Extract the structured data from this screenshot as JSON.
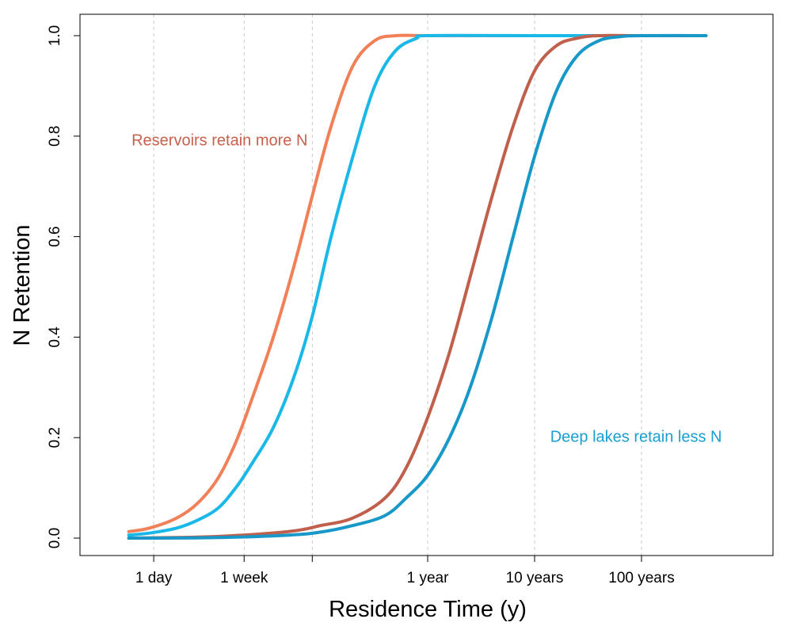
{
  "chart_data": {
    "type": "line",
    "xlabel": "Residence Time (y)",
    "ylabel": "N Retention",
    "x_scale": "log",
    "x_unit": "years",
    "xlim": [
      0.0013,
      600
    ],
    "ylim": [
      -0.03,
      1.03
    ],
    "grid": "vertical dashed at x ticks",
    "x_ticks": [
      {
        "value": 0.00274,
        "label": "1 day"
      },
      {
        "value": 0.0192,
        "label": "1 week"
      },
      {
        "value": 0.0833,
        "label": ""
      },
      {
        "value": 1,
        "label": "1 year"
      },
      {
        "value": 10,
        "label": "10 years"
      },
      {
        "value": 100,
        "label": "100 years"
      }
    ],
    "y_ticks": [
      {
        "value": 0.0,
        "label": "0.0"
      },
      {
        "value": 0.2,
        "label": "0.2"
      },
      {
        "value": 0.4,
        "label": "0.4"
      },
      {
        "value": 0.6,
        "label": "0.6"
      },
      {
        "value": 0.8,
        "label": "0.8"
      },
      {
        "value": 1.0,
        "label": "1.0"
      }
    ],
    "series": [
      {
        "color": "#f08058",
        "x": [
          0.0016,
          0.0025,
          0.0045,
          0.0071,
          0.011,
          0.016,
          0.023,
          0.036,
          0.056,
          0.083,
          0.125,
          0.2,
          0.32,
          0.5,
          1,
          10,
          100,
          400
        ],
        "y": [
          0.013,
          0.02,
          0.04,
          0.07,
          0.12,
          0.19,
          0.28,
          0.4,
          0.54,
          0.68,
          0.82,
          0.94,
          0.99,
          1.0,
          1.0,
          1.0,
          1.0,
          1.0
        ]
      },
      {
        "color": "#1ab8e8",
        "x": [
          0.0016,
          0.0025,
          0.0045,
          0.0071,
          0.011,
          0.016,
          0.023,
          0.036,
          0.056,
          0.083,
          0.125,
          0.2,
          0.32,
          0.5,
          0.79,
          1,
          10,
          100,
          400
        ],
        "y": [
          0.006,
          0.01,
          0.02,
          0.036,
          0.06,
          0.1,
          0.15,
          0.22,
          0.32,
          0.44,
          0.6,
          0.76,
          0.9,
          0.97,
          0.995,
          1.0,
          1.0,
          1.0,
          1.0
        ]
      },
      {
        "color": "#c0604c",
        "x": [
          0.0016,
          0.01,
          0.05,
          0.1,
          0.2,
          0.4,
          0.63,
          1,
          1.6,
          2.5,
          4,
          6.3,
          10,
          16,
          25,
          40,
          100,
          400
        ],
        "y": [
          0.0,
          0.003,
          0.013,
          0.025,
          0.04,
          0.08,
          0.14,
          0.24,
          0.37,
          0.52,
          0.68,
          0.82,
          0.93,
          0.98,
          0.995,
          1.0,
          1.0,
          1.0
        ]
      },
      {
        "color": "#1798c8",
        "x": [
          0.0016,
          0.01,
          0.05,
          0.1,
          0.2,
          0.4,
          0.63,
          1,
          1.6,
          2.5,
          4,
          6.3,
          10,
          16,
          25,
          40,
          63,
          100,
          400
        ],
        "y": [
          0.0,
          0.001,
          0.006,
          0.012,
          0.025,
          0.045,
          0.08,
          0.125,
          0.2,
          0.3,
          0.44,
          0.6,
          0.76,
          0.89,
          0.96,
          0.99,
          0.998,
          1.0,
          1.0
        ]
      }
    ],
    "annotations": [
      {
        "text": "Reservoirs retain more N",
        "color": "#c8604c",
        "x": 0.0017,
        "y": 0.79
      },
      {
        "text": "Deep lakes retain less N",
        "color": "#1a9ed0",
        "x": 14,
        "y": 0.2
      }
    ]
  }
}
